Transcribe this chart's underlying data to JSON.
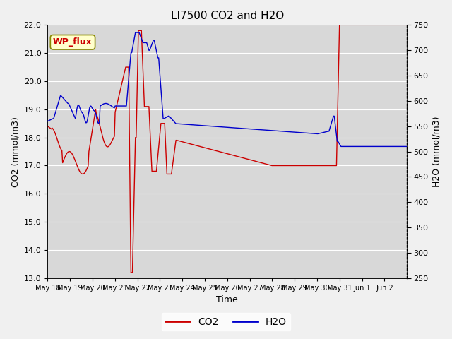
{
  "title": "LI7500 CO2 and H2O",
  "xlabel": "Time",
  "ylabel_left": "CO2 (mmol/m3)",
  "ylabel_right": "H2O (mmol/m3)",
  "ylim_left": [
    13.0,
    22.0
  ],
  "ylim_right": [
    250,
    750
  ],
  "yticks_left": [
    13.0,
    14.0,
    15.0,
    16.0,
    17.0,
    18.0,
    19.0,
    20.0,
    21.0,
    22.0
  ],
  "yticks_right": [
    250,
    300,
    350,
    400,
    450,
    500,
    550,
    600,
    650,
    700,
    750
  ],
  "xtick_labels": [
    "May 18",
    "May 19",
    "May 20",
    "May 21",
    "May 22",
    "May 23",
    "May 24",
    "May 25",
    "May 26",
    "May 27",
    "May 28",
    "May 29",
    "May 30",
    "May 31",
    "Jun 1",
    "Jun 2"
  ],
  "color_co2": "#cc0000",
  "color_h2o": "#0000cc",
  "fig_bg": "#f0f0f0",
  "plot_bg": "#d8d8d8",
  "grid_color": "#ffffff",
  "label_box_text": "WP_flux",
  "label_box_bg": "#ffffcc",
  "label_box_border": "#888800",
  "title_fontsize": 11,
  "axis_label_fontsize": 9,
  "tick_fontsize": 8,
  "legend_fontsize": 10,
  "linewidth": 1.0
}
